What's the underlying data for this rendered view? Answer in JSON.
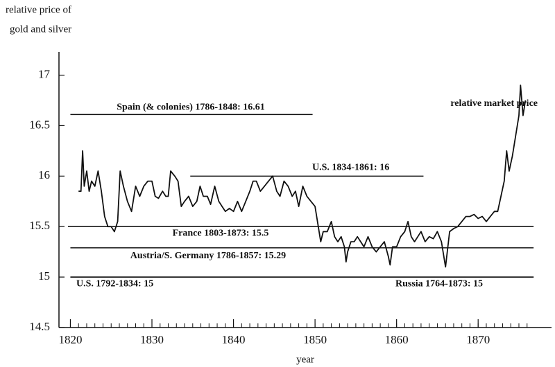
{
  "chart_data": {
    "type": "line",
    "y_label": [
      "relative price of",
      "gold and silver"
    ],
    "x_label": "year",
    "xlim": [
      1818.6,
      1879
    ],
    "ylim": [
      14.5,
      17.23
    ],
    "xticks": [
      1820,
      1830,
      1840,
      1850,
      1860,
      1870
    ],
    "xticks_minor": [
      1820,
      1821,
      1822,
      1823,
      1824,
      1825,
      1826,
      1827,
      1828,
      1829,
      1830,
      1831,
      1832,
      1833,
      1834,
      1835,
      1836,
      1837,
      1838,
      1839,
      1840,
      1841,
      1842,
      1843,
      1844,
      1845,
      1846,
      1847,
      1848,
      1849,
      1850,
      1851,
      1852,
      1853,
      1854,
      1855,
      1856,
      1857,
      1858,
      1859,
      1860,
      1861,
      1862,
      1863,
      1864,
      1865,
      1866,
      1867,
      1868,
      1869,
      1870,
      1871,
      1872,
      1873,
      1874,
      1875,
      1876
    ],
    "yticks": [
      14.5,
      15,
      15.5,
      16,
      16.5,
      17
    ],
    "reference_lines": [
      {
        "label": "Spain (& colonies) 1786-1848: 16.61",
        "value": 16.61,
        "x_start": 1820,
        "x_end": 1849.7
      },
      {
        "label": "U.S. 1834-1861: 16",
        "value": 16,
        "x_start": 1834.7,
        "x_end": 1863.3
      },
      {
        "label": "France 1803-1873: 15.5",
        "value": 15.5,
        "x_start": 1819.7,
        "x_end": 1876.8
      },
      {
        "label": "Austria/S. Germany 1786-1857: 15.29",
        "value": 15.29,
        "x_start": 1820,
        "x_end": 1876.8
      },
      {
        "label": "U.S. 1792-1834: 15",
        "value": 15,
        "x_start": 1820,
        "x_end": 1876.8
      },
      {
        "label": "Russia 1764-1873: 15",
        "value": 15,
        "x_start": 1820,
        "x_end": 1876.8
      }
    ],
    "series": [
      {
        "name": "relative market price",
        "color": "#111111",
        "x": [
          1821,
          1821.3,
          1821.5,
          1821.7,
          1822,
          1822.3,
          1822.6,
          1823,
          1823.4,
          1823.8,
          1824.2,
          1824.6,
          1825,
          1825.4,
          1825.8,
          1826.1,
          1826.5,
          1827,
          1827.5,
          1828,
          1828.5,
          1829,
          1829.5,
          1830,
          1830.4,
          1830.8,
          1831.3,
          1831.7,
          1832,
          1832.3,
          1832.8,
          1833.2,
          1833.6,
          1834,
          1834.5,
          1835,
          1835.5,
          1835.9,
          1836.3,
          1836.8,
          1837.2,
          1837.7,
          1838.2,
          1838.6,
          1839,
          1839.5,
          1840,
          1840.5,
          1841,
          1841.5,
          1842,
          1842.4,
          1842.8,
          1843.3,
          1843.8,
          1844.3,
          1844.8,
          1845.3,
          1845.7,
          1846.2,
          1846.7,
          1847.2,
          1847.6,
          1848,
          1848.5,
          1849,
          1849.5,
          1850,
          1850.4,
          1850.7,
          1851,
          1851.5,
          1852,
          1852.4,
          1852.8,
          1853.2,
          1853.6,
          1853.8,
          1854,
          1854.4,
          1854.8,
          1855.2,
          1855.6,
          1856,
          1856.5,
          1857,
          1857.5,
          1858,
          1858.5,
          1859,
          1859.2,
          1859.5,
          1860,
          1860.5,
          1861,
          1861.4,
          1861.8,
          1862.2,
          1862.6,
          1863,
          1863.5,
          1864,
          1864.5,
          1865,
          1865.5,
          1866,
          1866.5,
          1867,
          1867.5,
          1868,
          1868.5,
          1869,
          1869.5,
          1870,
          1870.5,
          1871,
          1871.5,
          1872,
          1872.4,
          1872.8,
          1873.2,
          1873.5,
          1873.8,
          1874.2,
          1874.6,
          1875,
          1875.2,
          1875.5,
          1875.8
        ],
        "values": [
          15.85,
          15.85,
          16.25,
          15.9,
          16.05,
          15.85,
          15.95,
          15.9,
          16.05,
          15.85,
          15.6,
          15.5,
          15.5,
          15.45,
          15.55,
          16.05,
          15.9,
          15.75,
          15.65,
          15.9,
          15.8,
          15.9,
          15.95,
          15.95,
          15.8,
          15.78,
          15.85,
          15.8,
          15.8,
          16.05,
          16.0,
          15.95,
          15.7,
          15.75,
          15.8,
          15.7,
          15.75,
          15.9,
          15.8,
          15.8,
          15.72,
          15.9,
          15.75,
          15.7,
          15.65,
          15.68,
          15.65,
          15.75,
          15.65,
          15.75,
          15.85,
          15.95,
          15.95,
          15.85,
          15.9,
          15.95,
          16.0,
          15.85,
          15.8,
          15.95,
          15.9,
          15.8,
          15.85,
          15.7,
          15.9,
          15.8,
          15.75,
          15.7,
          15.5,
          15.35,
          15.45,
          15.45,
          15.55,
          15.4,
          15.35,
          15.4,
          15.3,
          15.15,
          15.25,
          15.35,
          15.35,
          15.4,
          15.35,
          15.3,
          15.4,
          15.3,
          15.25,
          15.3,
          15.35,
          15.2,
          15.12,
          15.3,
          15.3,
          15.4,
          15.45,
          15.55,
          15.4,
          15.35,
          15.4,
          15.45,
          15.35,
          15.4,
          15.38,
          15.45,
          15.35,
          15.1,
          15.45,
          15.48,
          15.5,
          15.55,
          15.6,
          15.6,
          15.62,
          15.58,
          15.6,
          15.55,
          15.6,
          15.65,
          15.65,
          15.8,
          15.95,
          16.25,
          16.05,
          16.2,
          16.4,
          16.6,
          16.9,
          16.6,
          16.75
        ]
      }
    ]
  }
}
